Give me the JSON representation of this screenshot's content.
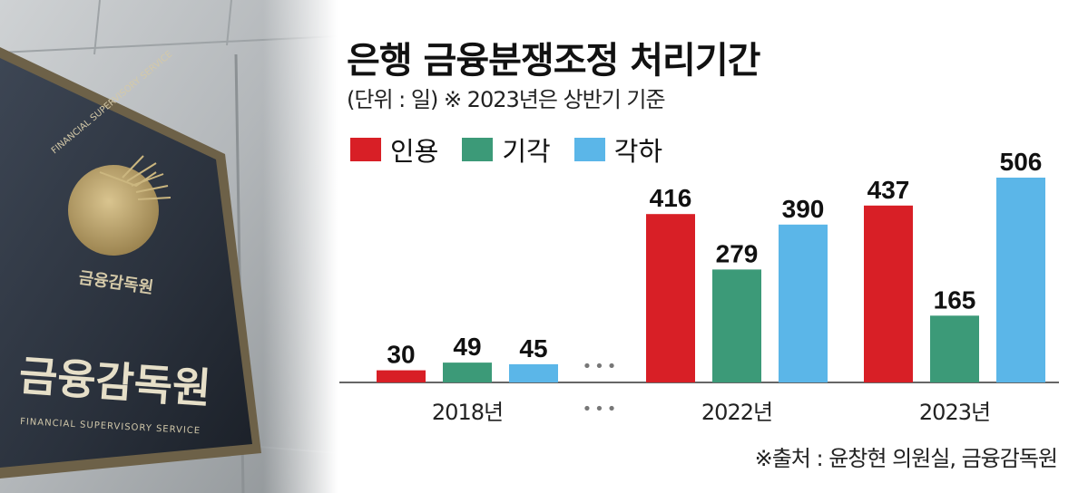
{
  "photo": {
    "plaque_text_ko": "금융감독원",
    "plaque_text_en": "FINANCIAL SUPERVISORY SERVICE",
    "seal_text_ko": "금융감독원",
    "seal_text_en": "FINANCIAL SUPERVISORY SERVICE"
  },
  "colors": {
    "인용": "#d81f26",
    "기각": "#3c9a78",
    "각하": "#5bb6e8"
  },
  "chart_data": {
    "type": "bar",
    "title": "은행 금융분쟁조정 처리기간",
    "subtitle": "(단위 : 일)  ※ 2023년은 상반기 기준",
    "categories": [
      "2018년",
      "2022년",
      "2023년"
    ],
    "gap_marker": "•••",
    "series": [
      {
        "name": "인용",
        "values": [
          30,
          416,
          437
        ]
      },
      {
        "name": "기각",
        "values": [
          49,
          279,
          165
        ]
      },
      {
        "name": "각하",
        "values": [
          45,
          390,
          506
        ]
      }
    ],
    "ylim": [
      0,
      506
    ],
    "source": "※출처 : 윤창현 의원실, 금융감독원"
  }
}
